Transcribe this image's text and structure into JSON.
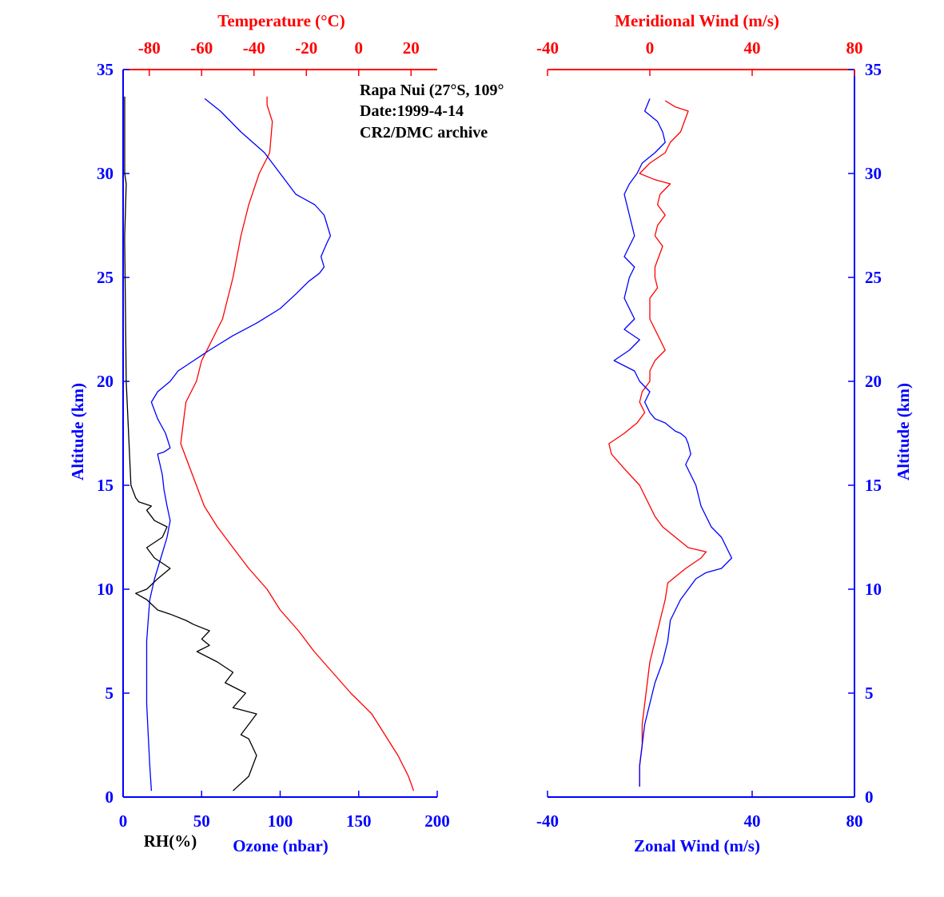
{
  "chart_data": [
    {
      "type": "line",
      "panel": "left",
      "annotation": [
        "Rapa Nui (27°S, 109°",
        "Date:1999-4-14",
        "CR2/DMC archive"
      ],
      "colors": {
        "temperature": "#ff0000",
        "ozone": "#0000ff",
        "rh": "#000000",
        "axis": "#0000ff"
      },
      "y_axis": {
        "label": "Altitude (km)",
        "ylim": [
          0,
          35
        ],
        "ticks": [
          0,
          5,
          10,
          15,
          20,
          25,
          30,
          35
        ]
      },
      "x_bottom": {
        "label": "Ozone (nbar)",
        "xlim": [
          0,
          200
        ],
        "ticks": [
          0,
          50,
          100,
          150,
          200
        ]
      },
      "x_bottom_extra_label": "RH(%)",
      "x_top": {
        "label": "Temperature (°C)",
        "xlim": [
          -90,
          30
        ],
        "ticks": [
          -80,
          -60,
          -40,
          -20,
          0,
          20
        ]
      },
      "series": [
        {
          "name": "Temperature (°C)",
          "color": "#ff0000",
          "axis": "top",
          "x": [
            21,
            19,
            15,
            10,
            5,
            -3,
            -10,
            -17,
            -23,
            -30,
            -35,
            -42,
            -48,
            -54,
            -59,
            -62,
            -65,
            -68,
            -67,
            -66,
            -62,
            -60,
            -56,
            -52,
            -48,
            -45,
            -42,
            -38,
            -34,
            -33,
            -35,
            -35
          ],
          "y": [
            0.3,
            1,
            2,
            3,
            4,
            5,
            6,
            7,
            8,
            9,
            10,
            11,
            12,
            13,
            14,
            15,
            16,
            17,
            18,
            19,
            20,
            21,
            22,
            23,
            25,
            27,
            28.5,
            30,
            31,
            32.5,
            33.3,
            33.7
          ]
        },
        {
          "name": "Ozone (nbar)",
          "color": "#0000ff",
          "axis": "bottom",
          "x": [
            18,
            17,
            16,
            15,
            15,
            15,
            16,
            17,
            20,
            24,
            28,
            30,
            28,
            26,
            25,
            22,
            26,
            30,
            27,
            22,
            18,
            22,
            30,
            35,
            45,
            55,
            70,
            85,
            100,
            110,
            118,
            125,
            128,
            126,
            130,
            132,
            128,
            122,
            110,
            100,
            90,
            75,
            62,
            52
          ],
          "y": [
            0.3,
            1.5,
            3,
            4.5,
            6,
            7.5,
            8.5,
            9.5,
            10.5,
            11.5,
            12.5,
            13.3,
            14,
            14.8,
            15.5,
            16.5,
            16.6,
            16.8,
            17.5,
            18.2,
            19,
            19.5,
            20.0,
            20.5,
            21,
            21.5,
            22.2,
            22.8,
            23.5,
            24.2,
            24.8,
            25.2,
            25.5,
            26,
            26.7,
            27,
            28,
            28.5,
            29,
            30,
            31,
            32,
            33,
            33.6
          ]
        },
        {
          "name": "RH(%)",
          "color": "#000000",
          "axis": "bottom",
          "x": [
            70,
            80,
            85,
            80,
            75,
            85,
            70,
            78,
            65,
            70,
            60,
            47,
            55,
            50,
            55,
            45,
            40,
            30,
            22,
            15,
            8,
            15,
            22,
            30,
            20,
            15,
            25,
            28,
            20,
            15,
            18,
            10,
            8,
            5,
            2,
            1,
            1,
            2,
            1,
            1
          ],
          "y": [
            0.3,
            1,
            2,
            2.8,
            3,
            4,
            4.3,
            5,
            5.5,
            6,
            6.5,
            7,
            7.3,
            7.6,
            8,
            8.3,
            8.5,
            8.8,
            9,
            9.5,
            9.8,
            10,
            10.5,
            11,
            11.5,
            12,
            12.5,
            13,
            13.3,
            13.8,
            14,
            14.2,
            14.4,
            15,
            20,
            26.7,
            27,
            29.5,
            30,
            33.7
          ]
        }
      ]
    },
    {
      "type": "line",
      "panel": "right",
      "colors": {
        "meridional": "#ff0000",
        "zonal": "#0000ff",
        "axis": "#0000ff"
      },
      "y_axis": {
        "label": "Altitude (km)",
        "ylim": [
          0,
          35
        ],
        "ticks": [
          0,
          5,
          10,
          15,
          20,
          25,
          30,
          35
        ]
      },
      "x_bottom": {
        "label": "Zonal Wind (m/s)",
        "xlim": [
          -40,
          80
        ],
        "ticks": [
          -40,
          40,
          80
        ]
      },
      "x_top": {
        "label": "Meridional Wind (m/s)",
        "xlim": [
          -40,
          80
        ],
        "ticks": [
          -40,
          0,
          40,
          80
        ]
      },
      "series": [
        {
          "name": "Meridional Wind (m/s)",
          "color": "#ff0000",
          "axis": "top",
          "x": [
            -4,
            -4,
            -3,
            -3,
            -2,
            -1,
            0,
            2,
            4,
            6,
            7,
            10,
            14,
            20,
            22,
            15,
            10,
            5,
            2,
            0,
            -4,
            -10,
            -15,
            -16,
            -10,
            -5,
            -2,
            -4,
            -3,
            0,
            0,
            2,
            6,
            4,
            0,
            0,
            3,
            2,
            2,
            5,
            2,
            3,
            6,
            3,
            4,
            8,
            2,
            -4,
            0,
            6,
            8,
            12,
            15,
            10,
            6
          ],
          "y": [
            0.5,
            1.5,
            2.5,
            3.5,
            4.5,
            5.5,
            6.5,
            7.5,
            8.5,
            9.5,
            10.3,
            10.6,
            11,
            11.5,
            11.8,
            12,
            12.5,
            13,
            13.5,
            14,
            15,
            15.8,
            16.5,
            17,
            17.5,
            18,
            18.5,
            19,
            19.5,
            20,
            20.5,
            21,
            21.5,
            22,
            23,
            24,
            24.5,
            25,
            25.5,
            26.5,
            27,
            27.5,
            28,
            28.5,
            29,
            29.5,
            29.7,
            30,
            30.5,
            31,
            31.5,
            32,
            33,
            33.2,
            33.5
          ]
        },
        {
          "name": "Zonal Wind (m/s)",
          "color": "#0000ff",
          "axis": "bottom",
          "x": [
            -4,
            -4,
            -3,
            -2,
            0,
            2,
            5,
            7,
            8,
            10,
            12,
            15,
            18,
            22,
            28,
            32,
            30,
            28,
            24,
            22,
            20,
            18,
            16,
            14,
            16,
            15,
            14,
            12,
            10,
            8,
            6,
            2,
            0,
            -2,
            0,
            -4,
            -6,
            -14,
            -8,
            -4,
            -10,
            -6,
            -10,
            -8,
            -6,
            -10,
            -6,
            -8,
            -10,
            -8,
            -5,
            -3,
            2,
            6,
            5,
            3,
            -2,
            0
          ],
          "y": [
            0.5,
            1.5,
            2.5,
            3.5,
            4.5,
            5.5,
            6.5,
            7.5,
            8.5,
            9,
            9.5,
            10,
            10.5,
            10.8,
            11,
            11.5,
            12,
            12.5,
            13,
            13.5,
            14,
            15,
            15.5,
            16,
            16.5,
            17,
            17.3,
            17.5,
            17.6,
            17.8,
            18,
            18.2,
            18.5,
            19,
            19.5,
            20,
            20.5,
            21,
            21.5,
            22,
            22.5,
            23,
            24,
            25,
            25.5,
            26,
            27,
            28,
            29,
            29.5,
            30,
            30.5,
            31,
            31.5,
            32,
            32.5,
            33,
            33.6
          ]
        }
      ]
    }
  ]
}
